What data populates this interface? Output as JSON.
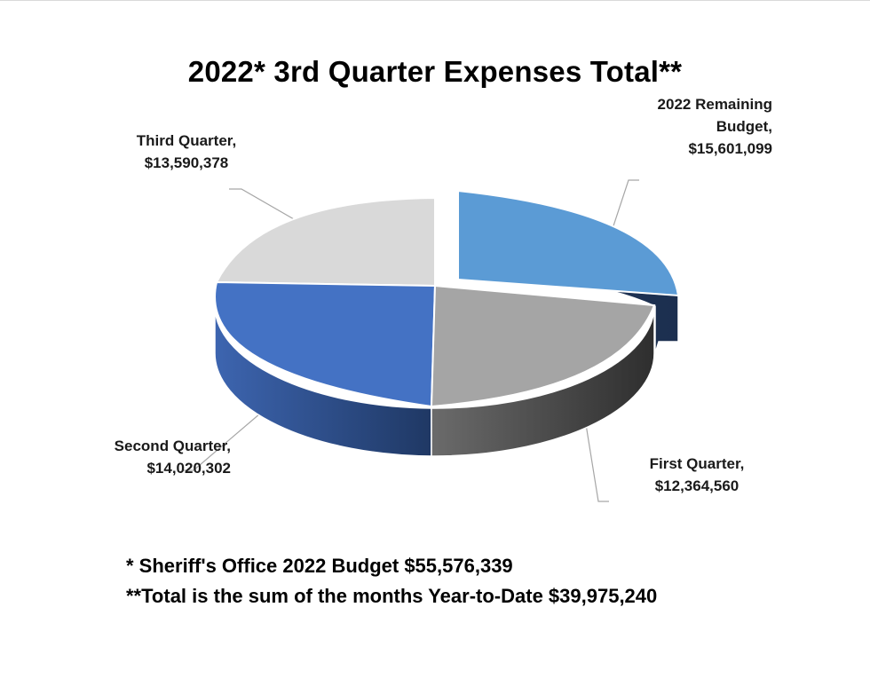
{
  "chart_data": {
    "type": "pie",
    "title": "2022* 3rd Quarter Expenses Total**",
    "slices": [
      {
        "label": "2022 Remaining Budget,",
        "value_text": "$15,601,099",
        "value": 15601099,
        "color": "#5b9bd5"
      },
      {
        "label": "First Quarter,",
        "value_text": "$12,364,560",
        "value": 12364560,
        "color": "#a5a5a5"
      },
      {
        "label": "Second Quarter,",
        "value_text": "$14,020,302",
        "value": 14020302,
        "color": "#4472c4"
      },
      {
        "label": "Third Quarter,",
        "value_text": "$13,590,378",
        "value": 13590378,
        "color": "#d9d9d9"
      }
    ],
    "legend": "none"
  },
  "labels": {
    "remaining_line1": "2022 Remaining",
    "remaining_line2": "Budget,"
  },
  "footnotes": {
    "line1": "*  Sheriff's Office 2022 Budget $55,576,339",
    "line2": "**Total is the sum of the months Year-to-Date $39,975,240"
  }
}
